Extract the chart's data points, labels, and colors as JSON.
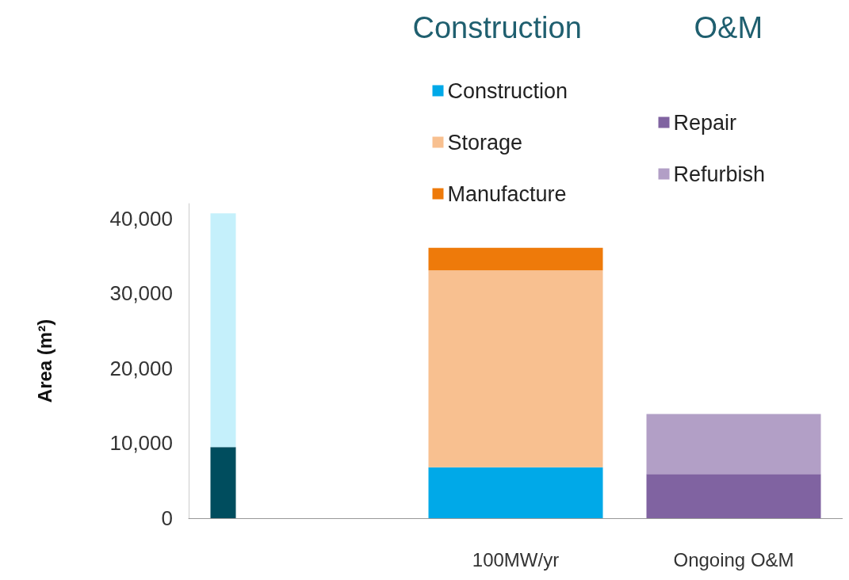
{
  "chart_data": {
    "type": "bar",
    "stacked": true,
    "ylabel": "Area (m²)",
    "annotations": [
      "Construction",
      "O&M"
    ],
    "categories": [
      null,
      "100MW/yr",
      "Ongoing O&M"
    ],
    "series": [
      {
        "color": "#004d5e",
        "values": [
          9500,
          null,
          null
        ]
      },
      {
        "color": "#c5f0fb",
        "values": [
          31200,
          null,
          null
        ]
      },
      {
        "name": "Construction",
        "color": "#00a9e8",
        "values": [
          null,
          6800,
          null
        ]
      },
      {
        "name": "Storage",
        "color": "#f8c090",
        "values": [
          null,
          26300,
          null
        ]
      },
      {
        "name": "Manufacture",
        "color": "#ee7a0a",
        "values": [
          null,
          3000,
          null
        ]
      },
      {
        "name": "Repair",
        "color": "#8063a1",
        "values": [
          null,
          null,
          5900
        ]
      },
      {
        "name": "Refurbish",
        "color": "#b29fc6",
        "values": [
          null,
          null,
          8000
        ]
      }
    ],
    "ylim": [
      0,
      42000
    ],
    "yticks": [
      0,
      {
        "value": 10000,
        "label": "10,000"
      },
      {
        "value": 20000,
        "label": "20,000"
      },
      {
        "value": 30000,
        "label": "30,000"
      },
      {
        "value": 40000,
        "label": "40,000"
      }
    ],
    "grid": false,
    "legend": "top"
  }
}
